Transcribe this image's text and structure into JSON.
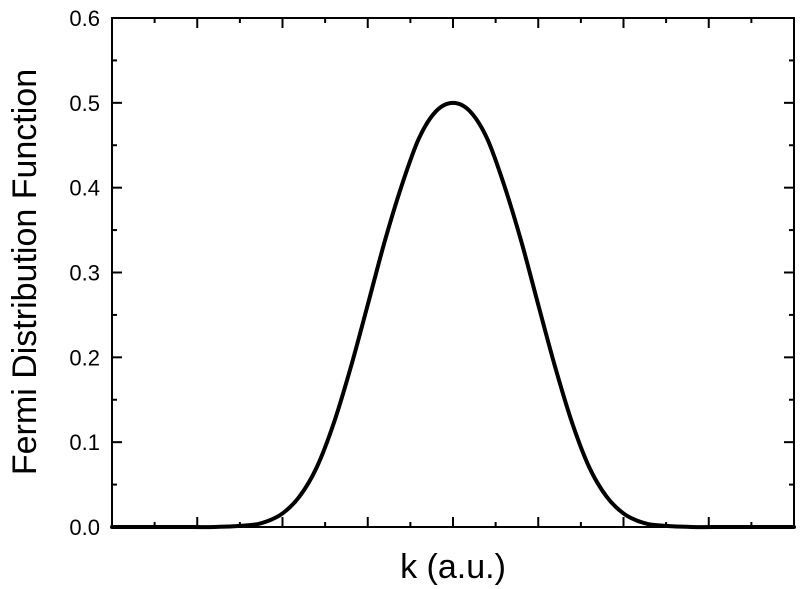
{
  "chart_data": {
    "type": "line",
    "title": "",
    "xlabel": "k (a.u.)",
    "ylabel": "Fermi Distribution Function",
    "xlim": [
      0,
      1
    ],
    "ylim": [
      0,
      0.6
    ],
    "yticks": [
      "0.0",
      "0.1",
      "0.2",
      "0.3",
      "0.4",
      "0.5",
      "0.6"
    ],
    "x_tick_labels_shown": false,
    "grid": false,
    "legend": "none",
    "series_color": "#000000",
    "series": [
      {
        "name": "",
        "x": [
          0.0,
          0.05,
          0.1,
          0.15,
          0.2,
          0.225,
          0.25,
          0.275,
          0.3,
          0.325,
          0.35,
          0.375,
          0.4,
          0.425,
          0.45,
          0.475,
          0.5,
          0.525,
          0.55,
          0.575,
          0.6,
          0.625,
          0.65,
          0.675,
          0.7,
          0.725,
          0.75,
          0.775,
          0.8,
          0.85,
          0.9,
          0.95,
          1.0
        ],
        "y": [
          0.0,
          0.0,
          0.0,
          0.0,
          0.002,
          0.006,
          0.016,
          0.036,
          0.07,
          0.122,
          0.188,
          0.262,
          0.337,
          0.403,
          0.458,
          0.49,
          0.5,
          0.49,
          0.458,
          0.403,
          0.337,
          0.262,
          0.188,
          0.122,
          0.07,
          0.036,
          0.016,
          0.006,
          0.002,
          0.0,
          0.0,
          0.0,
          0.0
        ]
      }
    ]
  }
}
